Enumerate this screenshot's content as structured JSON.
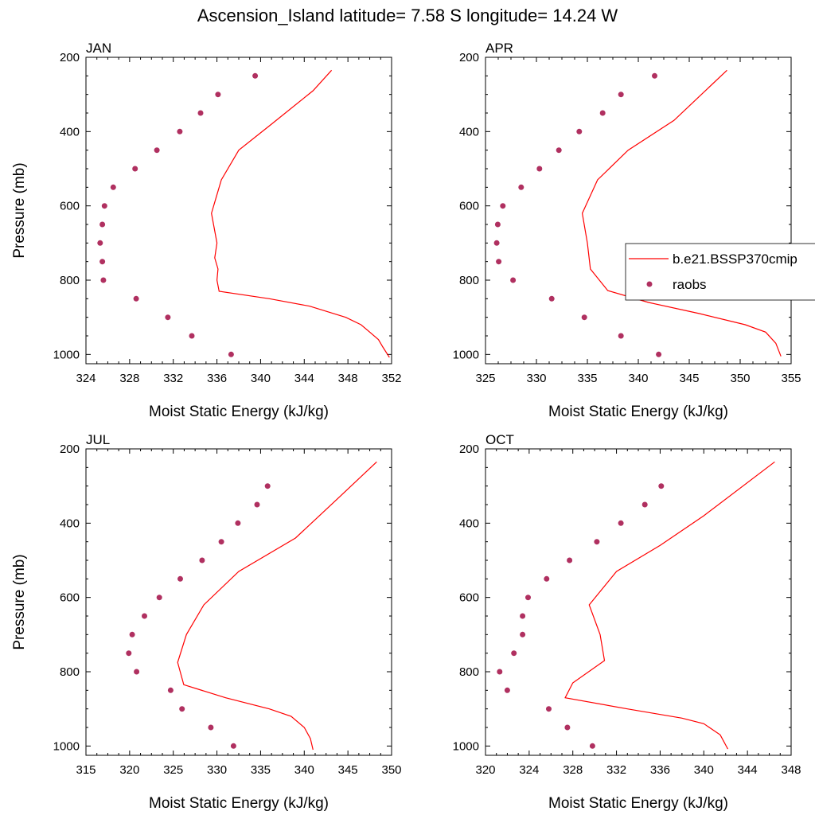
{
  "figure": {
    "title": "Ascension_Island  latitude= 7.58 S longitude= 14.24 W",
    "colors": {
      "model": "#ff0000",
      "obs": "#b03060",
      "axes": "#000000"
    },
    "legend": {
      "placement": "right of APR panel, middle",
      "entries": [
        {
          "label": "b.e21.BSSP370cmip",
          "style": "line"
        },
        {
          "label": "raobs",
          "style": "marker"
        }
      ]
    }
  },
  "chart_data": [
    {
      "type": "line",
      "title": "JAN",
      "xlabel": "Moist Static Energy (kJ/kg)",
      "ylabel": "Pressure (mb)",
      "xlim": [
        324,
        352
      ],
      "ylim": [
        200,
        1025
      ],
      "y_inverted": true,
      "xticks": [
        324,
        328,
        332,
        336,
        340,
        344,
        348,
        352
      ],
      "yticks": [
        200,
        400,
        600,
        800,
        1000
      ],
      "series": [
        {
          "name": "b.e21.BSSP370cmip",
          "style": "line",
          "x": [
            351.8,
            351.2,
            350.8,
            350.0,
            349.2,
            347.8,
            344.5,
            340.8,
            336.2,
            336.0,
            336.1,
            335.8,
            336.0,
            335.5,
            335.9,
            336.4,
            338.0,
            341.0,
            344.8,
            346.5
          ],
          "y": [
            1008,
            980,
            960,
            940,
            920,
            900,
            870,
            850,
            830,
            800,
            770,
            740,
            700,
            620,
            580,
            530,
            450,
            380,
            290,
            235
          ]
        },
        {
          "name": "raobs",
          "style": "marker",
          "x": [
            337.3,
            333.7,
            331.5,
            328.6,
            325.6,
            325.5,
            325.3,
            325.5,
            325.7,
            326.5,
            328.5,
            330.5,
            332.6,
            334.5,
            336.1,
            339.5
          ],
          "y": [
            1000,
            950,
            900,
            850,
            800,
            750,
            700,
            650,
            600,
            550,
            500,
            450,
            400,
            350,
            300,
            250
          ]
        }
      ]
    },
    {
      "type": "line",
      "title": "APR",
      "xlabel": "Moist Static Energy (kJ/kg)",
      "ylabel": "",
      "xlim": [
        325,
        355
      ],
      "ylim": [
        200,
        1025
      ],
      "y_inverted": true,
      "xticks": [
        325,
        330,
        335,
        340,
        345,
        350,
        355
      ],
      "yticks": [
        200,
        400,
        600,
        800,
        1000
      ],
      "series": [
        {
          "name": "b.e21.BSSP370cmip",
          "style": "line",
          "x": [
            354.0,
            353.5,
            352.5,
            350.5,
            346.0,
            341.0,
            337.0,
            335.3,
            335.0,
            334.5,
            336.0,
            339.0,
            343.5,
            348.7
          ],
          "y": [
            1005,
            970,
            940,
            920,
            890,
            860,
            828,
            770,
            700,
            620,
            530,
            450,
            370,
            235
          ]
        },
        {
          "name": "raobs",
          "style": "marker",
          "x": [
            342.0,
            338.3,
            334.7,
            331.5,
            327.7,
            326.3,
            326.1,
            326.2,
            326.7,
            328.5,
            330.3,
            332.2,
            334.2,
            336.5,
            338.3,
            341.6
          ],
          "y": [
            1000,
            950,
            900,
            850,
            800,
            750,
            700,
            650,
            600,
            550,
            500,
            450,
            400,
            350,
            300,
            250
          ]
        }
      ]
    },
    {
      "type": "line",
      "title": "JUL",
      "xlabel": "Moist Static Energy (kJ/kg)",
      "ylabel": "Pressure (mb)",
      "xlim": [
        315,
        350
      ],
      "ylim": [
        200,
        1025
      ],
      "y_inverted": true,
      "xticks": [
        315,
        320,
        325,
        330,
        335,
        340,
        345,
        350
      ],
      "yticks": [
        200,
        400,
        600,
        800,
        1000
      ],
      "series": [
        {
          "name": "b.e21.BSSP370cmip",
          "style": "line",
          "x": [
            341.0,
            340.7,
            340.0,
            338.5,
            336.0,
            331.0,
            326.2,
            325.5,
            326.5,
            328.5,
            332.5,
            339.0,
            344.0,
            348.3
          ],
          "y": [
            1010,
            980,
            950,
            920,
            900,
            870,
            835,
            775,
            700,
            620,
            530,
            440,
            330,
            235
          ]
        },
        {
          "name": "raobs",
          "style": "marker",
          "x": [
            331.9,
            329.3,
            326.0,
            324.7,
            320.8,
            319.9,
            320.3,
            321.7,
            323.4,
            325.8,
            328.3,
            330.5,
            332.4,
            334.6,
            335.8
          ],
          "y": [
            1000,
            950,
            900,
            850,
            800,
            750,
            700,
            650,
            600,
            550,
            500,
            450,
            400,
            350,
            300
          ]
        }
      ]
    },
    {
      "type": "line",
      "title": "OCT",
      "xlabel": "Moist Static Energy (kJ/kg)",
      "ylabel": "",
      "xlim": [
        320,
        348
      ],
      "ylim": [
        200,
        1025
      ],
      "y_inverted": true,
      "xticks": [
        320,
        324,
        328,
        332,
        336,
        340,
        344,
        348
      ],
      "yticks": [
        200,
        400,
        600,
        800,
        1000
      ],
      "series": [
        {
          "name": "b.e21.BSSP370cmip",
          "style": "line",
          "x": [
            342.2,
            341.5,
            340.0,
            338.0,
            333.0,
            327.3,
            328.0,
            330.9,
            330.5,
            329.5,
            332.0,
            336.0,
            340.0,
            346.5
          ],
          "y": [
            1008,
            970,
            940,
            925,
            900,
            870,
            830,
            770,
            700,
            620,
            530,
            460,
            380,
            235
          ]
        },
        {
          "name": "raobs",
          "style": "marker",
          "x": [
            329.8,
            327.5,
            325.8,
            322.0,
            321.3,
            322.6,
            323.4,
            323.4,
            323.9,
            325.6,
            327.7,
            330.2,
            332.4,
            334.6,
            336.1
          ],
          "y": [
            1000,
            950,
            900,
            850,
            800,
            750,
            700,
            650,
            600,
            550,
            500,
            450,
            400,
            350,
            300
          ]
        }
      ]
    }
  ]
}
